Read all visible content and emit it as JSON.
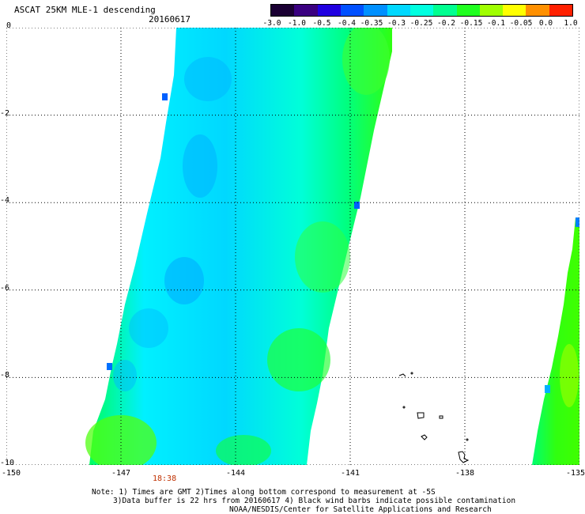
{
  "header": {
    "title": "ASCAT 25KM MLE-1 descending",
    "date": "20160617"
  },
  "colorbar": {
    "labels": [
      "-3.0",
      "-1.0",
      "-0.5",
      "-0.4",
      "-0.35",
      "-0.3",
      "-0.25",
      "-0.2",
      "-0.15",
      "-0.1",
      "-0.05",
      "0.0",
      "1.0"
    ],
    "colors": [
      "#1a0033",
      "#3a0080",
      "#2000e0",
      "#0050ff",
      "#0090ff",
      "#00d8ff",
      "#00ffe0",
      "#00ff90",
      "#20ff20",
      "#a0ff00",
      "#ffff00",
      "#ff9000",
      "#ff2000"
    ]
  },
  "map": {
    "y_labels": [
      "0",
      "-2",
      "-4",
      "-6",
      "-8",
      "-10"
    ],
    "x_labels": [
      "-150",
      "-147",
      "-144",
      "-141",
      "-138",
      "-135"
    ],
    "pass_time": "18:38"
  },
  "notes": {
    "line1": "Note: 1) Times are GMT 2)Times along bottom correspond to measurement at -5S",
    "line2": "3)Data buffer is 22 hrs from 20160617 4) Black wind barbs indicate possible contamination",
    "line3": "NOAA/NESDIS/Center for Satellite Applications and Research"
  }
}
